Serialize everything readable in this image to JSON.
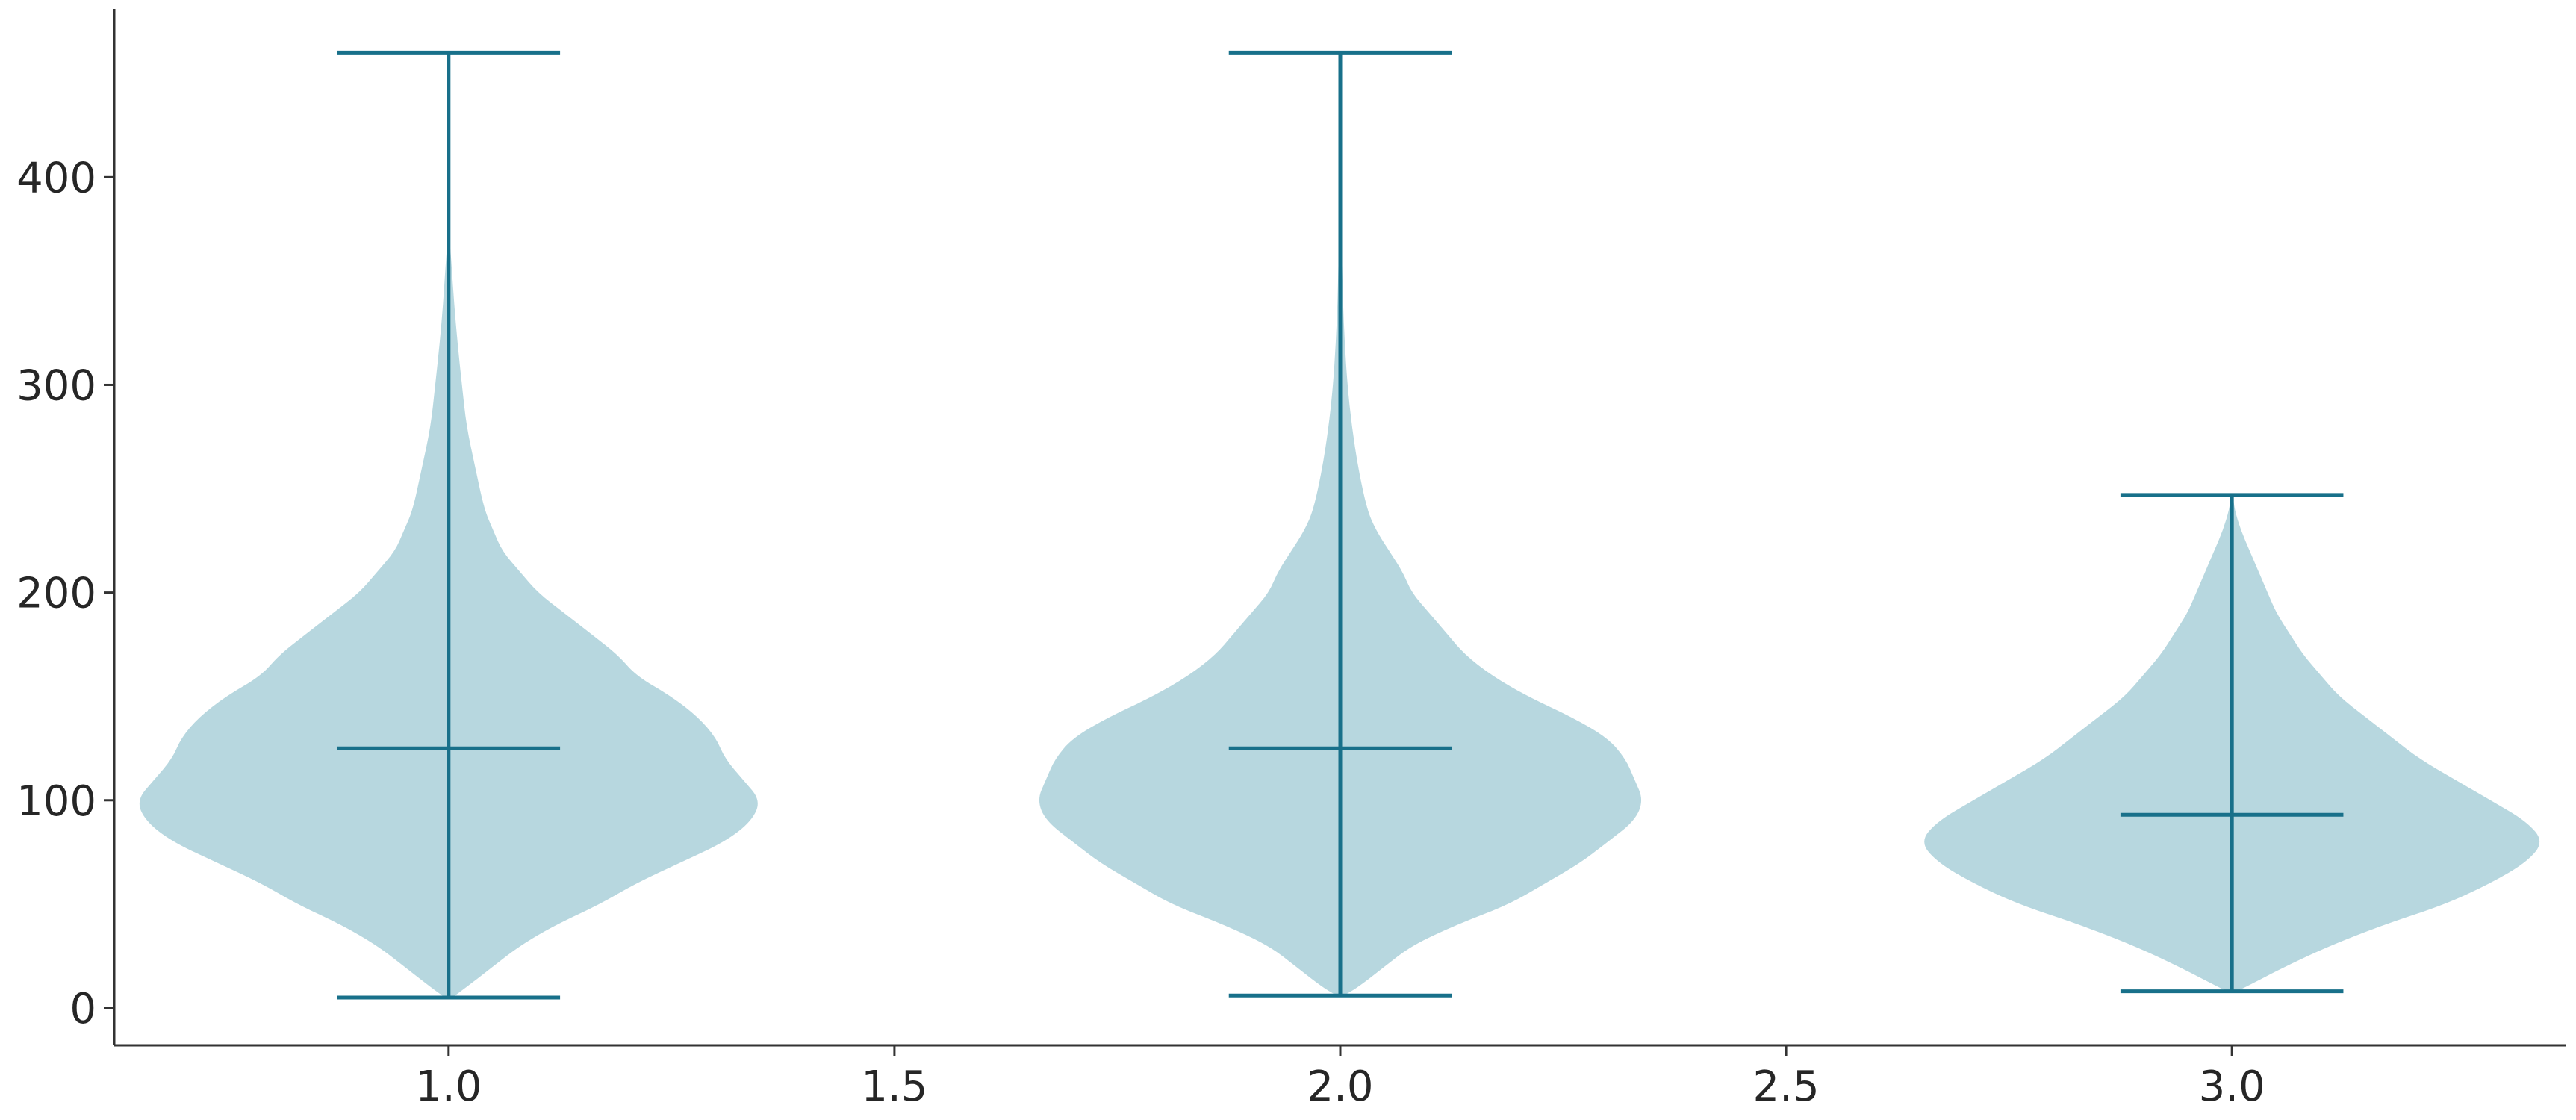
{
  "chart_data": {
    "type": "violin",
    "title": "",
    "xlabel": "",
    "ylabel": "",
    "xlim": [
      0.625,
      3.375
    ],
    "ylim": [
      -18,
      481
    ],
    "x_ticks": [
      "1.0",
      "1.5",
      "2.0",
      "2.5",
      "3.0"
    ],
    "x_tick_values": [
      1.0,
      1.5,
      2.0,
      2.5,
      3.0
    ],
    "y_ticks": [
      "0",
      "100",
      "200",
      "300",
      "400"
    ],
    "y_tick_values": [
      0,
      100,
      200,
      300,
      400
    ],
    "grid": false,
    "colors": {
      "fill": "#b7d7df",
      "line": "#18708a",
      "axis": "#333333",
      "text": "#262626"
    },
    "violins": [
      {
        "position": 1.0,
        "min": 5,
        "max": 460,
        "mean": 125,
        "profile": [
          [
            5,
            0.004
          ],
          [
            10,
            0.02
          ],
          [
            20,
            0.05
          ],
          [
            30,
            0.08
          ],
          [
            40,
            0.12
          ],
          [
            50,
            0.17
          ],
          [
            60,
            0.21
          ],
          [
            70,
            0.26
          ],
          [
            80,
            0.31
          ],
          [
            90,
            0.34
          ],
          [
            100,
            0.35
          ],
          [
            110,
            0.33
          ],
          [
            120,
            0.31
          ],
          [
            130,
            0.3
          ],
          [
            140,
            0.28
          ],
          [
            150,
            0.25
          ],
          [
            160,
            0.21
          ],
          [
            170,
            0.19
          ],
          [
            180,
            0.16
          ],
          [
            190,
            0.13
          ],
          [
            200,
            0.1
          ],
          [
            210,
            0.08
          ],
          [
            220,
            0.06
          ],
          [
            230,
            0.05
          ],
          [
            240,
            0.04
          ],
          [
            260,
            0.03
          ],
          [
            280,
            0.02
          ],
          [
            300,
            0.015
          ],
          [
            320,
            0.01
          ],
          [
            340,
            0.006
          ],
          [
            360,
            0.003
          ],
          [
            370,
            0.001
          ]
        ]
      },
      {
        "position": 2.0,
        "min": 6,
        "max": 460,
        "mean": 125,
        "profile": [
          [
            6,
            0.004
          ],
          [
            10,
            0.02
          ],
          [
            20,
            0.05
          ],
          [
            30,
            0.08
          ],
          [
            40,
            0.13
          ],
          [
            50,
            0.19
          ],
          [
            60,
            0.23
          ],
          [
            70,
            0.27
          ],
          [
            80,
            0.3
          ],
          [
            90,
            0.33
          ],
          [
            100,
            0.34
          ],
          [
            110,
            0.33
          ],
          [
            120,
            0.32
          ],
          [
            130,
            0.3
          ],
          [
            140,
            0.26
          ],
          [
            150,
            0.21
          ],
          [
            160,
            0.17
          ],
          [
            170,
            0.14
          ],
          [
            180,
            0.12
          ],
          [
            190,
            0.1
          ],
          [
            200,
            0.08
          ],
          [
            210,
            0.07
          ],
          [
            220,
            0.055
          ],
          [
            230,
            0.04
          ],
          [
            240,
            0.03
          ],
          [
            260,
            0.02
          ],
          [
            280,
            0.013
          ],
          [
            300,
            0.008
          ],
          [
            320,
            0.005
          ],
          [
            340,
            0.003
          ],
          [
            360,
            0.002
          ],
          [
            370,
            0.001
          ]
        ]
      },
      {
        "position": 3.0,
        "min": 8,
        "max": 247,
        "mean": 93,
        "profile": [
          [
            8,
            0.005
          ],
          [
            10,
            0.015
          ],
          [
            20,
            0.06
          ],
          [
            30,
            0.11
          ],
          [
            40,
            0.17
          ],
          [
            50,
            0.24
          ],
          [
            60,
            0.29
          ],
          [
            70,
            0.33
          ],
          [
            80,
            0.35
          ],
          [
            90,
            0.33
          ],
          [
            100,
            0.29
          ],
          [
            110,
            0.25
          ],
          [
            120,
            0.21
          ],
          [
            130,
            0.18
          ],
          [
            140,
            0.15
          ],
          [
            150,
            0.12
          ],
          [
            160,
            0.1
          ],
          [
            170,
            0.08
          ],
          [
            180,
            0.065
          ],
          [
            190,
            0.05
          ],
          [
            200,
            0.04
          ],
          [
            210,
            0.03
          ],
          [
            220,
            0.02
          ],
          [
            230,
            0.01
          ],
          [
            240,
            0.003
          ],
          [
            247,
            0.001
          ]
        ]
      }
    ]
  }
}
